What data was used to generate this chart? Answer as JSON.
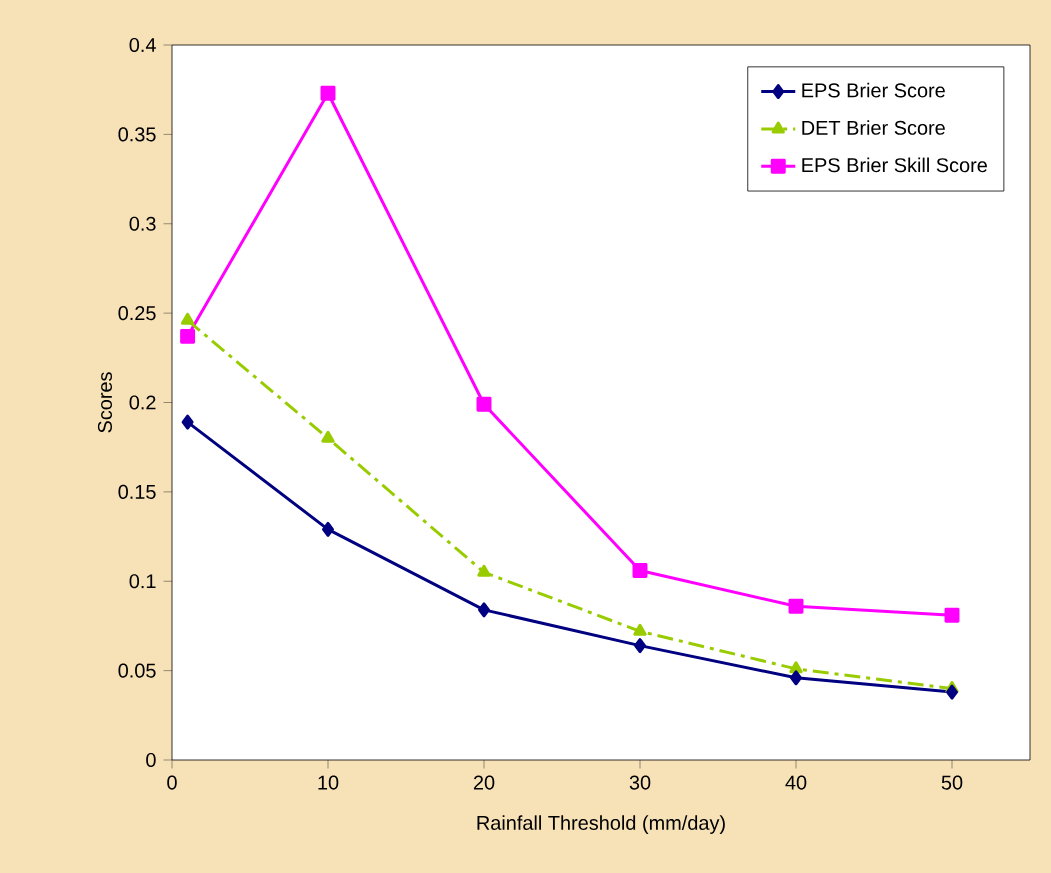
{
  "chart_data": {
    "type": "line",
    "xlabel": "Rainfall Threshold (mm/day)",
    "ylabel": "Scores",
    "x": [
      1,
      10,
      20,
      30,
      40,
      50
    ],
    "series": [
      {
        "name": "EPS Brier Score",
        "color": "#000080",
        "marker": "diamond",
        "line_style": "solid",
        "values": [
          0.189,
          0.129,
          0.084,
          0.064,
          0.046,
          0.038
        ]
      },
      {
        "name": "DET Brier Score",
        "color": "#99cc00",
        "marker": "triangle",
        "line_style": "dashed",
        "values": [
          0.246,
          0.18,
          0.105,
          0.072,
          0.051,
          0.04
        ]
      },
      {
        "name": "EPS Brier Skill Score",
        "color": "#ff00ff",
        "marker": "square",
        "line_style": "solid",
        "values": [
          0.237,
          0.373,
          0.199,
          0.106,
          0.086,
          0.081
        ]
      }
    ],
    "xlim": [
      0,
      55
    ],
    "xticks": [
      0,
      10,
      20,
      30,
      40,
      50
    ],
    "ylim": [
      0,
      0.4
    ],
    "yticks": [
      0,
      0.05,
      0.1,
      0.15,
      0.2,
      0.25,
      0.3,
      0.35,
      0.4
    ],
    "grid": false,
    "legend": "top right"
  }
}
